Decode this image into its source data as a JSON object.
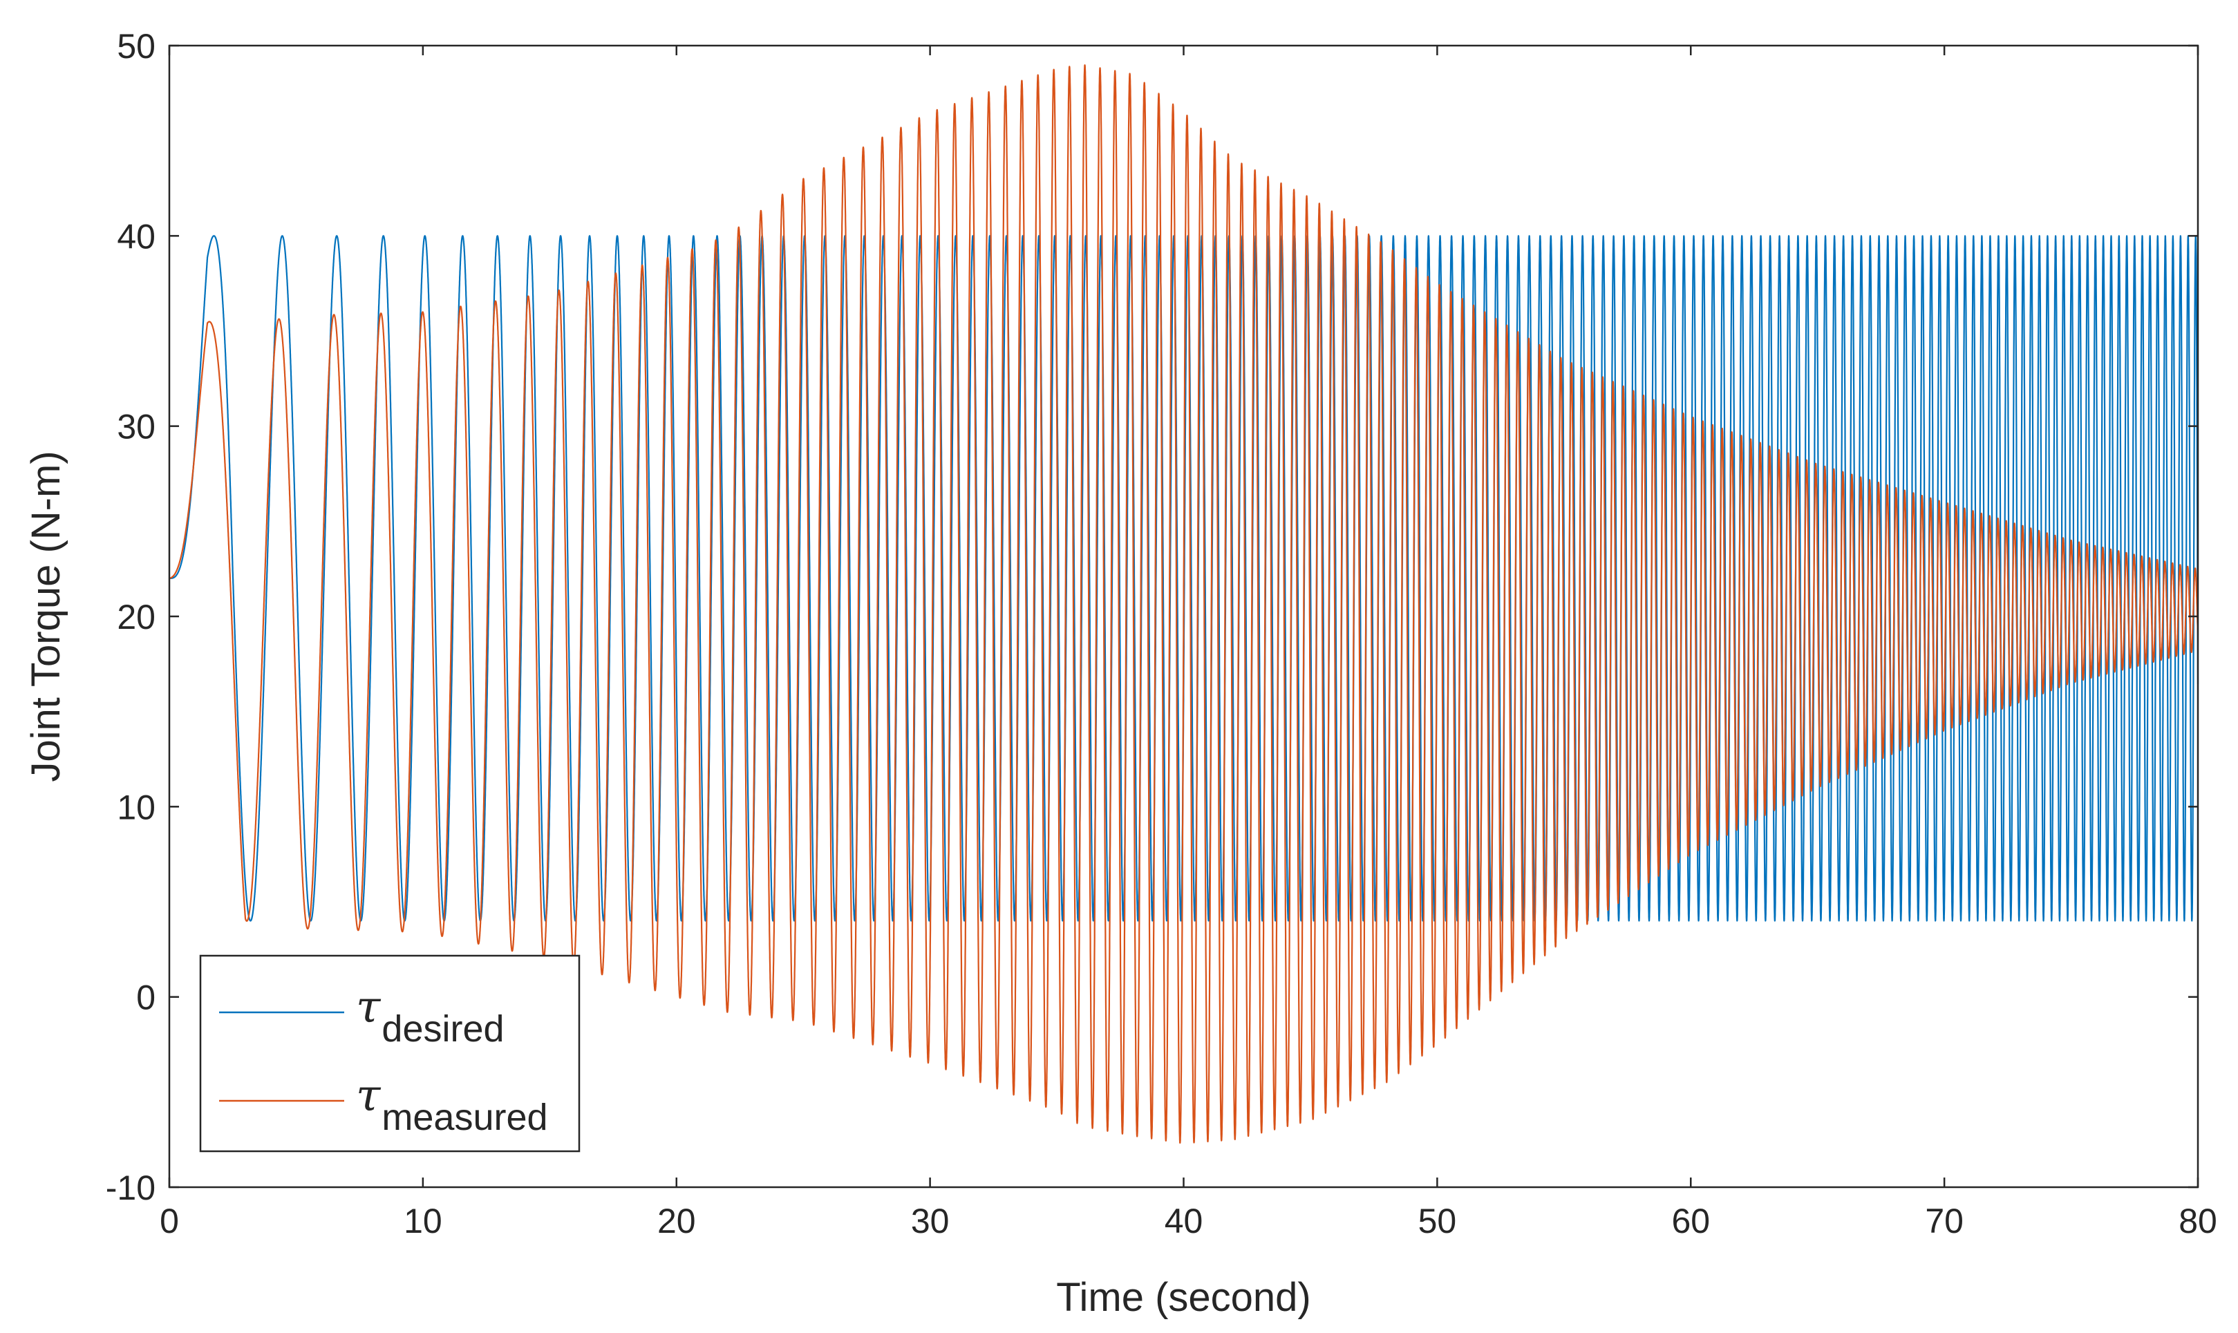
{
  "chart_data": {
    "type": "line",
    "title": "",
    "xlabel": "Time (second)",
    "ylabel": "Joint Torque (N-m)",
    "xlim": [
      0,
      80
    ],
    "ylim": [
      -10,
      50
    ],
    "xticks": [
      0,
      10,
      20,
      30,
      40,
      50,
      60,
      70,
      80
    ],
    "yticks": [
      -10,
      0,
      10,
      20,
      30,
      40,
      50
    ],
    "xtick_labels": [
      "0",
      "10",
      "20",
      "30",
      "40",
      "50",
      "60",
      "70",
      "80"
    ],
    "ytick_labels": [
      "-10",
      "0",
      "10",
      "20",
      "30",
      "40",
      "50"
    ],
    "grid": false,
    "legend_position": "bottom-left",
    "series": [
      {
        "name": "τdesired",
        "legend_symbol": "τ",
        "legend_subscript": "desired",
        "color": "#0072BD",
        "description_of_shape": "chirp sine oscillating between 4 and 40 about a mean of 22, frequency increasing with time",
        "envelope": {
          "t": [
            0,
            1.5,
            2.5,
            80
          ],
          "upper": [
            22,
            40,
            40,
            40
          ],
          "lower": [
            22,
            22,
            4,
            4
          ]
        }
      },
      {
        "name": "τmeasured",
        "legend_symbol": "τ",
        "legend_subscript": "measured",
        "color": "#D95319",
        "description_of_shape": "response to chirp; amplitude grows to a peak near t=36 and then decays toward 20",
        "envelope": {
          "t": [
            0,
            1.5,
            3,
            5,
            10,
            15,
            20,
            22,
            25,
            30,
            35,
            36,
            38,
            40,
            42,
            45,
            48,
            50,
            55,
            60,
            65,
            70,
            75,
            80
          ],
          "upper": [
            22,
            35.5,
            35.3,
            35.8,
            36,
            37,
            39,
            40,
            43,
            46.5,
            48.8,
            49,
            48.5,
            46.5,
            44,
            42,
            39.5,
            37.5,
            33.5,
            30.5,
            28,
            26,
            24,
            22.5
          ],
          "lower": [
            22,
            22,
            4,
            3.6,
            3.4,
            2,
            0,
            -0.8,
            -1.3,
            -3.5,
            -6,
            -6.8,
            -7.3,
            -7.7,
            -7.5,
            -6.5,
            -4.5,
            -2.5,
            3,
            7.5,
            11,
            14,
            16.5,
            18.2
          ]
        }
      }
    ]
  }
}
